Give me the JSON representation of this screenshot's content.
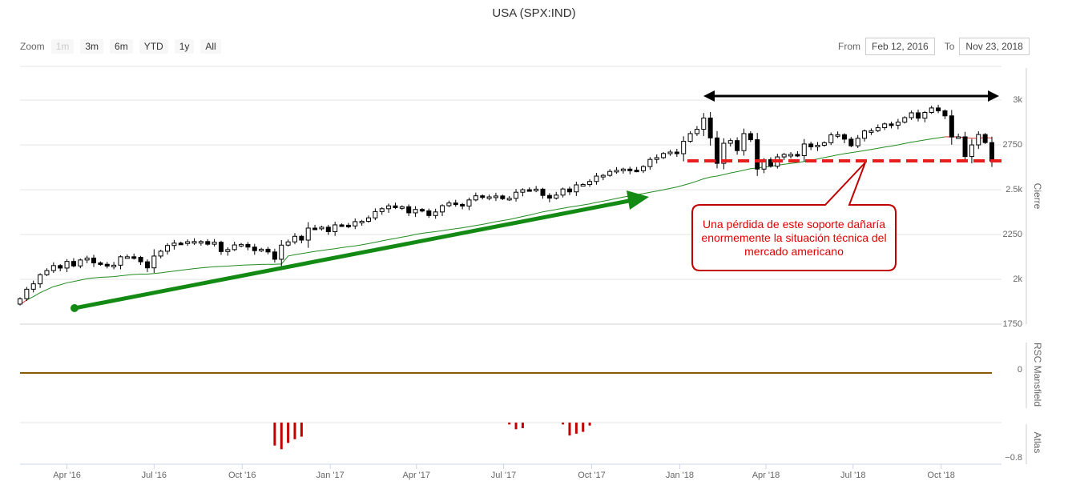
{
  "title": "USA (SPX:IND)",
  "zoom": {
    "label": "Zoom",
    "buttons": [
      {
        "label": "1m",
        "disabled": true
      },
      {
        "label": "3m",
        "disabled": false
      },
      {
        "label": "6m",
        "disabled": false
      },
      {
        "label": "YTD",
        "disabled": false
      },
      {
        "label": "1y",
        "disabled": false
      },
      {
        "label": "All",
        "disabled": false
      }
    ]
  },
  "range": {
    "from_label": "From",
    "from_value": "Feb 12, 2016",
    "to_label": "To",
    "to_value": "Nov 23, 2018"
  },
  "colors": {
    "ma_green": "#228b22",
    "ma_red": "#e03030",
    "arrow_green": "#138a13",
    "support_red": "#e81d1d",
    "rsc_line": "#8b5a00",
    "atlas_bar": "#c00000",
    "callout_border": "#c00000"
  },
  "chart_data": [
    {
      "type": "candlestick",
      "name": "Cierre",
      "ylabel": "Cierre",
      "ylim": [
        1700,
        3150
      ],
      "yticks": [
        1750,
        2000,
        2250,
        2500,
        2750,
        3000
      ],
      "ytick_labels": [
        "1750",
        "2k",
        "2250",
        "2.5k",
        "2750",
        "3k"
      ],
      "xlim": [
        "2016-02-12",
        "2018-11-23"
      ],
      "xticks": [
        "2016-04-01",
        "2016-07-01",
        "2016-10-01",
        "2017-01-01",
        "2017-04-01",
        "2017-07-01",
        "2017-10-01",
        "2018-01-01",
        "2018-04-01",
        "2018-07-01",
        "2018-10-01"
      ],
      "xtick_labels": [
        "Apr '16",
        "Jul '16",
        "Oct '16",
        "Jan '17",
        "Apr '17",
        "Jul '17",
        "Oct '17",
        "Jan '18",
        "Apr '18",
        "Jul '18",
        "Oct '18"
      ],
      "grid": true,
      "weekly_closes": [
        [
          "2016-02-12",
          1865
        ],
        [
          "2016-02-19",
          1918
        ],
        [
          "2016-02-26",
          1948
        ],
        [
          "2016-03-04",
          1999
        ],
        [
          "2016-03-11",
          2022
        ],
        [
          "2016-03-18",
          2050
        ],
        [
          "2016-03-25",
          2036
        ],
        [
          "2016-04-01",
          2073
        ],
        [
          "2016-04-08",
          2048
        ],
        [
          "2016-04-15",
          2081
        ],
        [
          "2016-04-22",
          2092
        ],
        [
          "2016-04-29",
          2065
        ],
        [
          "2016-05-06",
          2057
        ],
        [
          "2016-05-13",
          2047
        ],
        [
          "2016-05-20",
          2052
        ],
        [
          "2016-05-27",
          2099
        ],
        [
          "2016-06-03",
          2099
        ],
        [
          "2016-06-10",
          2096
        ],
        [
          "2016-06-17",
          2071
        ],
        [
          "2016-06-24",
          2037
        ],
        [
          "2016-07-01",
          2103
        ],
        [
          "2016-07-08",
          2130
        ],
        [
          "2016-07-15",
          2162
        ],
        [
          "2016-07-22",
          2175
        ],
        [
          "2016-07-29",
          2173
        ],
        [
          "2016-08-05",
          2183
        ],
        [
          "2016-08-12",
          2184
        ],
        [
          "2016-08-19",
          2184
        ],
        [
          "2016-08-26",
          2169
        ],
        [
          "2016-09-02",
          2180
        ],
        [
          "2016-09-09",
          2128
        ],
        [
          "2016-09-16",
          2139
        ],
        [
          "2016-09-23",
          2165
        ],
        [
          "2016-09-30",
          2168
        ],
        [
          "2016-10-07",
          2153
        ],
        [
          "2016-10-14",
          2133
        ],
        [
          "2016-10-21",
          2141
        ],
        [
          "2016-10-28",
          2126
        ],
        [
          "2016-11-04",
          2085
        ],
        [
          "2016-11-11",
          2164
        ],
        [
          "2016-11-18",
          2182
        ],
        [
          "2016-11-25",
          2213
        ],
        [
          "2016-12-02",
          2192
        ],
        [
          "2016-12-09",
          2259
        ],
        [
          "2016-12-16",
          2258
        ],
        [
          "2016-12-23",
          2264
        ],
        [
          "2016-12-30",
          2239
        ],
        [
          "2017-01-06",
          2277
        ],
        [
          "2017-01-13",
          2275
        ],
        [
          "2017-01-20",
          2271
        ],
        [
          "2017-01-27",
          2295
        ],
        [
          "2017-02-03",
          2297
        ],
        [
          "2017-02-10",
          2316
        ],
        [
          "2017-02-17",
          2351
        ],
        [
          "2017-02-24",
          2367
        ],
        [
          "2017-03-03",
          2383
        ],
        [
          "2017-03-10",
          2373
        ],
        [
          "2017-03-17",
          2378
        ],
        [
          "2017-03-24",
          2344
        ],
        [
          "2017-03-31",
          2363
        ],
        [
          "2017-04-07",
          2355
        ],
        [
          "2017-04-14",
          2329
        ],
        [
          "2017-04-21",
          2349
        ],
        [
          "2017-04-28",
          2384
        ],
        [
          "2017-05-05",
          2399
        ],
        [
          "2017-05-12",
          2391
        ],
        [
          "2017-05-19",
          2382
        ],
        [
          "2017-05-26",
          2416
        ],
        [
          "2017-06-02",
          2439
        ],
        [
          "2017-06-09",
          2432
        ],
        [
          "2017-06-16",
          2433
        ],
        [
          "2017-06-23",
          2438
        ],
        [
          "2017-06-30",
          2423
        ],
        [
          "2017-07-07",
          2425
        ],
        [
          "2017-07-14",
          2459
        ],
        [
          "2017-07-21",
          2473
        ],
        [
          "2017-07-28",
          2472
        ],
        [
          "2017-08-04",
          2476
        ],
        [
          "2017-08-11",
          2441
        ],
        [
          "2017-08-18",
          2426
        ],
        [
          "2017-08-25",
          2443
        ],
        [
          "2017-09-01",
          2477
        ],
        [
          "2017-09-08",
          2461
        ],
        [
          "2017-09-15",
          2500
        ],
        [
          "2017-09-22",
          2502
        ],
        [
          "2017-09-29",
          2519
        ],
        [
          "2017-10-06",
          2549
        ],
        [
          "2017-10-13",
          2553
        ],
        [
          "2017-10-20",
          2575
        ],
        [
          "2017-10-27",
          2581
        ],
        [
          "2017-11-03",
          2588
        ],
        [
          "2017-11-10",
          2582
        ],
        [
          "2017-11-17",
          2579
        ],
        [
          "2017-11-24",
          2602
        ],
        [
          "2017-12-01",
          2642
        ],
        [
          "2017-12-08",
          2652
        ],
        [
          "2017-12-15",
          2675
        ],
        [
          "2017-12-22",
          2683
        ],
        [
          "2017-12-29",
          2674
        ],
        [
          "2018-01-05",
          2743
        ],
        [
          "2018-01-12",
          2786
        ],
        [
          "2018-01-19",
          2810
        ],
        [
          "2018-01-26",
          2873
        ],
        [
          "2018-02-02",
          2762
        ],
        [
          "2018-02-09",
          2620
        ],
        [
          "2018-02-16",
          2732
        ],
        [
          "2018-02-23",
          2747
        ],
        [
          "2018-03-02",
          2691
        ],
        [
          "2018-03-09",
          2786
        ],
        [
          "2018-03-16",
          2752
        ],
        [
          "2018-03-23",
          2588
        ],
        [
          "2018-03-30",
          2641
        ],
        [
          "2018-04-06",
          2604
        ],
        [
          "2018-04-13",
          2656
        ],
        [
          "2018-04-20",
          2670
        ],
        [
          "2018-04-27",
          2670
        ],
        [
          "2018-05-04",
          2663
        ],
        [
          "2018-05-11",
          2728
        ],
        [
          "2018-05-18",
          2712
        ],
        [
          "2018-05-25",
          2721
        ],
        [
          "2018-06-01",
          2735
        ],
        [
          "2018-06-08",
          2779
        ],
        [
          "2018-06-15",
          2780
        ],
        [
          "2018-06-22",
          2755
        ],
        [
          "2018-06-29",
          2718
        ],
        [
          "2018-07-06",
          2760
        ],
        [
          "2018-07-13",
          2801
        ],
        [
          "2018-07-20",
          2802
        ],
        [
          "2018-07-27",
          2819
        ],
        [
          "2018-08-03",
          2840
        ],
        [
          "2018-08-10",
          2833
        ],
        [
          "2018-08-17",
          2850
        ],
        [
          "2018-08-24",
          2875
        ],
        [
          "2018-08-31",
          2902
        ],
        [
          "2018-09-07",
          2872
        ],
        [
          "2018-09-14",
          2904
        ],
        [
          "2018-09-21",
          2929
        ],
        [
          "2018-09-28",
          2913
        ],
        [
          "2018-10-05",
          2885
        ],
        [
          "2018-10-12",
          2767
        ],
        [
          "2018-10-19",
          2768
        ],
        [
          "2018-10-26",
          2658
        ],
        [
          "2018-11-02",
          2723
        ],
        [
          "2018-11-09",
          2781
        ],
        [
          "2018-11-16",
          2736
        ],
        [
          "2018-11-23",
          2633
        ]
      ]
    },
    {
      "type": "line",
      "name": "RSC Mansfield",
      "ylabel": "RSC Mansfield",
      "yticks": [
        0
      ],
      "ytick_labels": [
        "0"
      ],
      "values_note": "",
      "constant_value": 0
    },
    {
      "type": "bar",
      "name": "Atlas",
      "ylabel": "Atlas",
      "yticks": [
        -0.8
      ],
      "ytick_labels": [
        "−0.8"
      ],
      "ylim": [
        -0.9,
        0
      ],
      "bars": [
        [
          "2016-11-04",
          -0.62
        ],
        [
          "2016-11-11",
          -0.72
        ],
        [
          "2016-11-18",
          -0.55
        ],
        [
          "2016-11-25",
          -0.45
        ],
        [
          "2016-12-02",
          -0.38
        ],
        [
          "2017-07-07",
          -0.05
        ],
        [
          "2017-07-14",
          -0.18
        ],
        [
          "2017-07-21",
          -0.15
        ],
        [
          "2017-09-01",
          -0.05
        ],
        [
          "2017-09-08",
          -0.35
        ],
        [
          "2017-09-15",
          -0.3
        ],
        [
          "2017-09-22",
          -0.25
        ],
        [
          "2017-09-29",
          -0.08
        ]
      ]
    }
  ],
  "annotations": {
    "callout_text": "Una pérdida de este soporte dañaría enormemente la situación técnica del mercado americano",
    "support_level": 2590,
    "top_range_level": 3000
  }
}
